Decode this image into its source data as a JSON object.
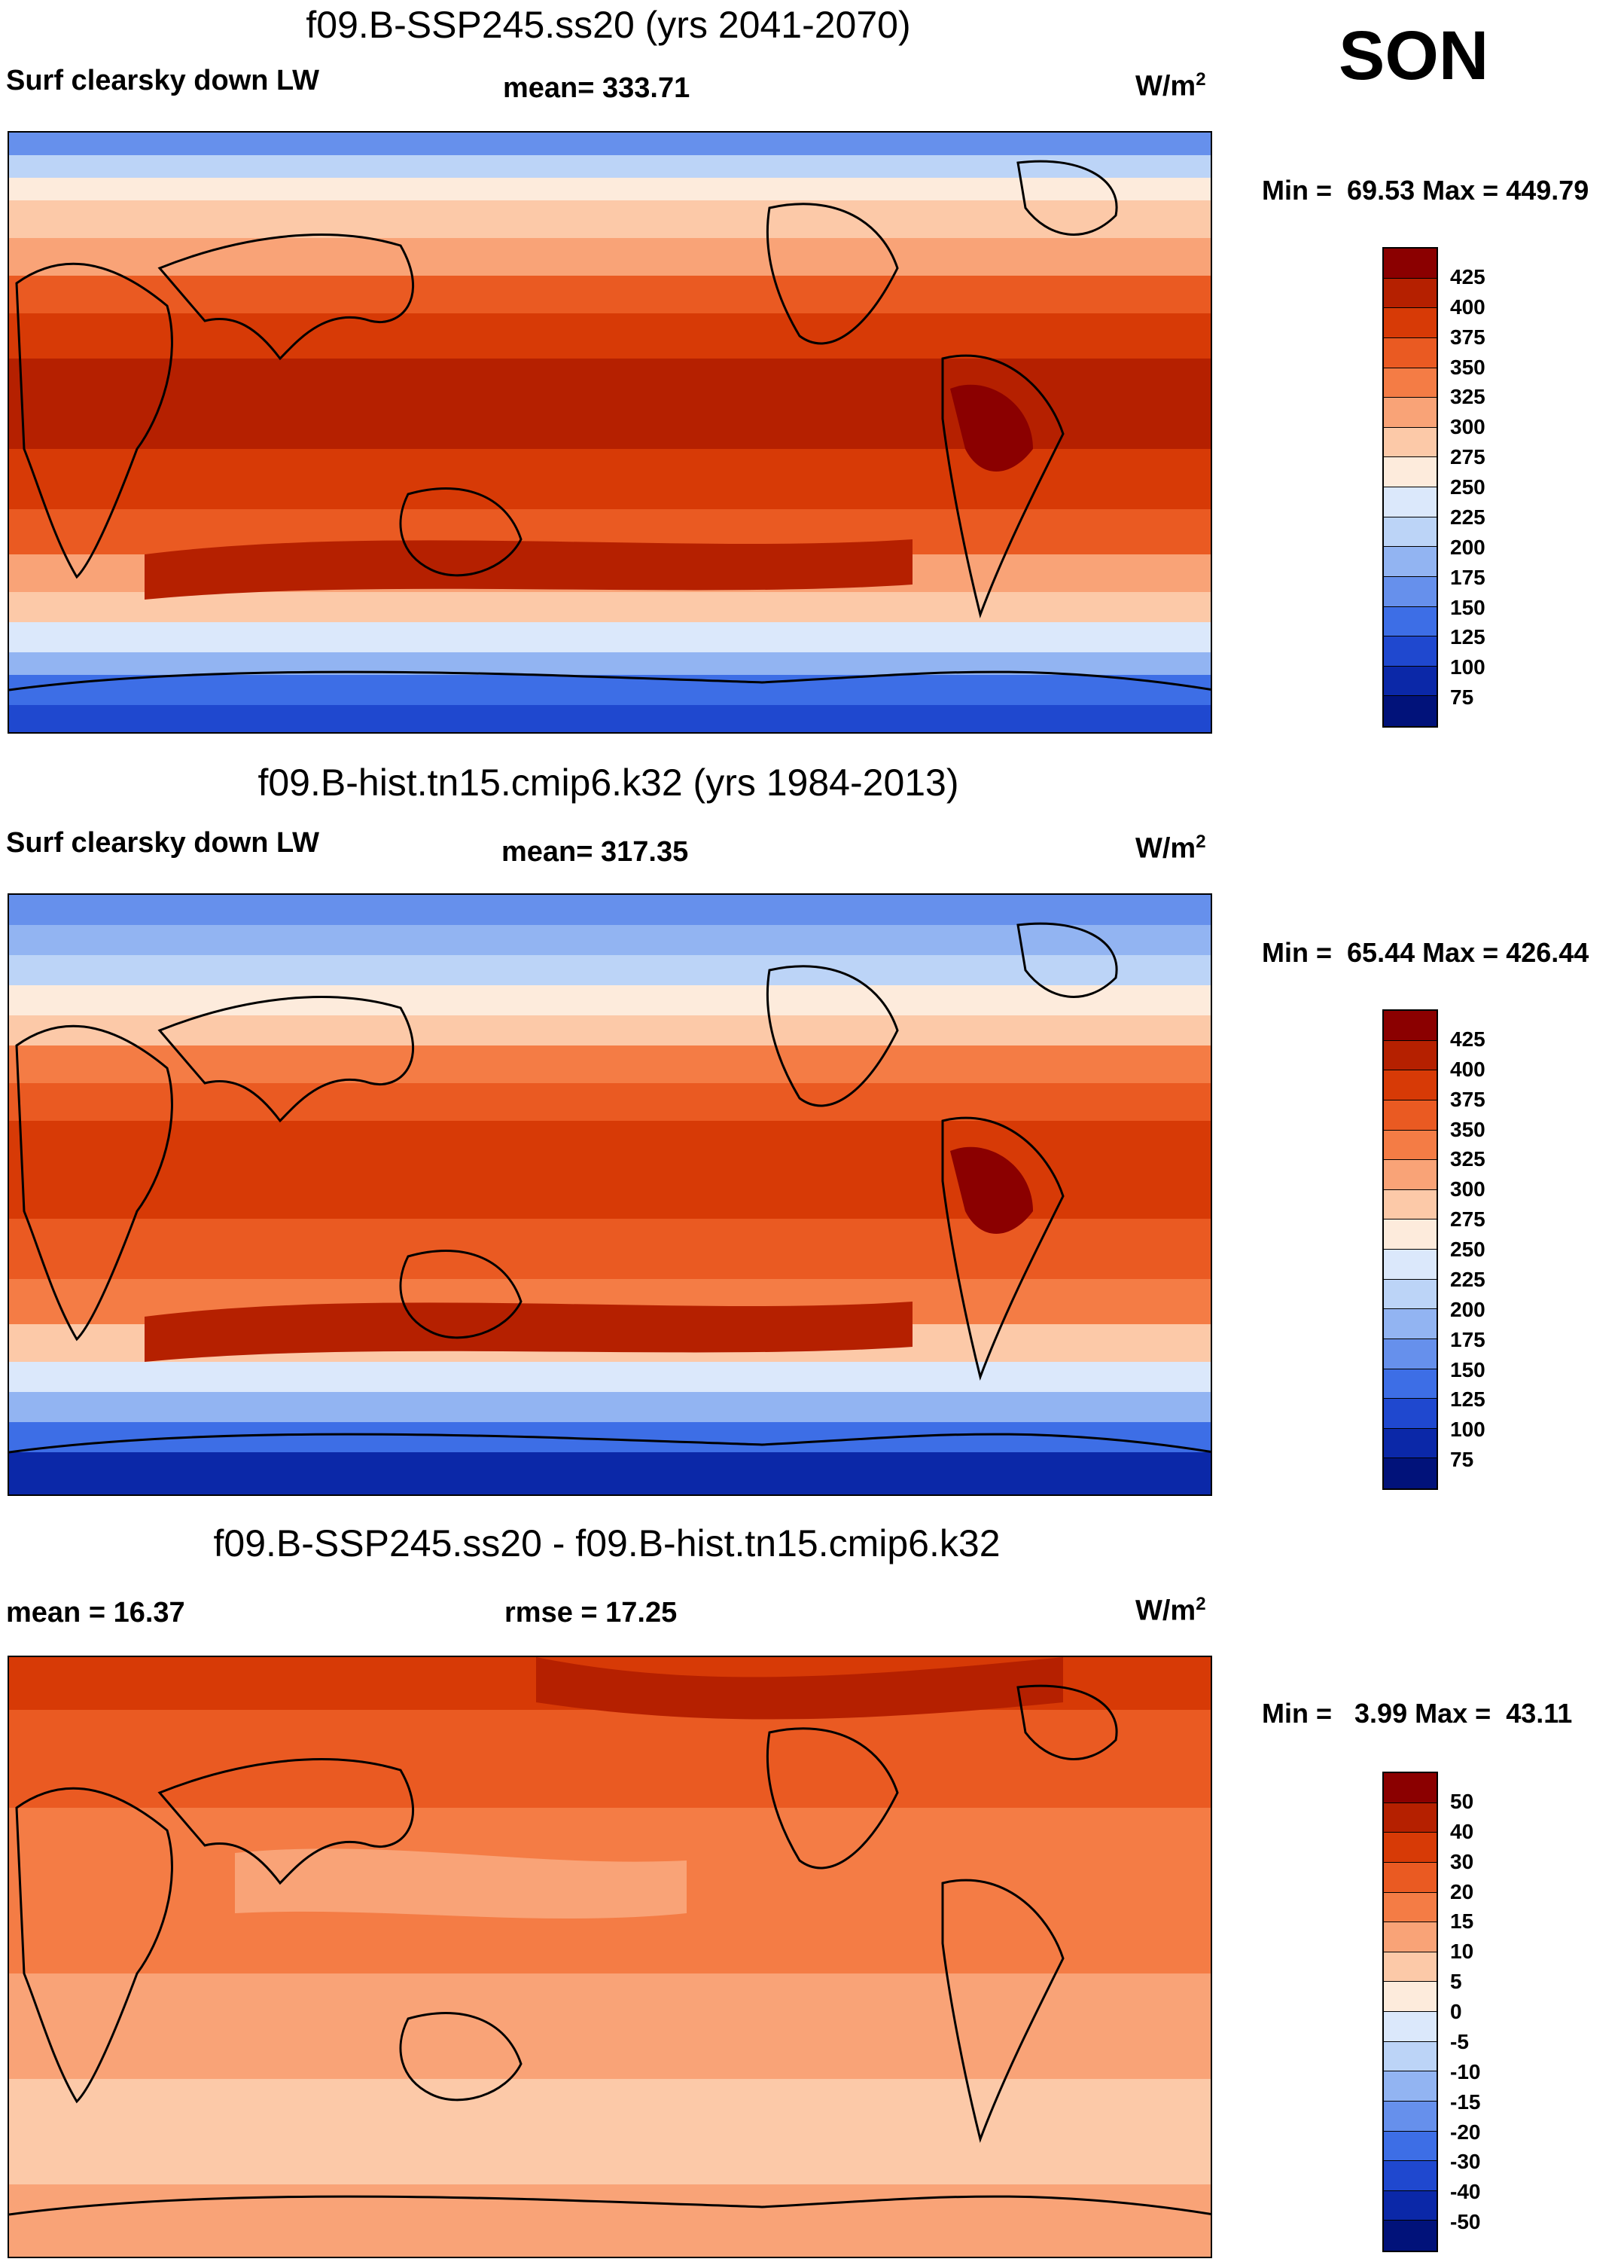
{
  "season": "SON",
  "panels": [
    {
      "title": "f09.B-SSP245.ss20 (yrs 2041-2070)",
      "left_label": "Surf clearsky down LW",
      "center_label": "mean= 333.71",
      "units": "W/m",
      "units_sup": "2",
      "min_label": "Min =",
      "min_value": "69.53",
      "max_label": "Max =",
      "max_value": "449.79",
      "colorbar": {
        "ticks": [
          "425",
          "400",
          "375",
          "350",
          "325",
          "300",
          "275",
          "250",
          "225",
          "200",
          "175",
          "150",
          "125",
          "100",
          "75"
        ],
        "colors": [
          "#8b0000",
          "#b52000",
          "#d73a06",
          "#ea5a22",
          "#f47c45",
          "#f9a377",
          "#fcc9a8",
          "#fdebdc",
          "#dbe8fb",
          "#bcd4f7",
          "#92b4f2",
          "#6690ec",
          "#3d6ee6",
          "#1f48cf",
          "#0b28a8",
          "#01127a"
        ]
      },
      "map_palette": "abs"
    },
    {
      "title": "f09.B-hist.tn15.cmip6.k32 (yrs 1984-2013)",
      "left_label": "Surf clearsky down LW",
      "center_label": "mean= 317.35",
      "units": "W/m",
      "units_sup": "2",
      "min_label": "Min =",
      "min_value": "65.44",
      "max_label": "Max =",
      "max_value": "426.44",
      "colorbar": {
        "ticks": [
          "425",
          "400",
          "375",
          "350",
          "325",
          "300",
          "275",
          "250",
          "225",
          "200",
          "175",
          "150",
          "125",
          "100",
          "75"
        ],
        "colors": [
          "#8b0000",
          "#b52000",
          "#d73a06",
          "#ea5a22",
          "#f47c45",
          "#f9a377",
          "#fcc9a8",
          "#fdebdc",
          "#dbe8fb",
          "#bcd4f7",
          "#92b4f2",
          "#6690ec",
          "#3d6ee6",
          "#1f48cf",
          "#0b28a8",
          "#01127a"
        ]
      },
      "map_palette": "abs_hist"
    },
    {
      "title": "f09.B-SSP245.ss20 - f09.B-hist.tn15.cmip6.k32",
      "left_label": "mean =  16.37",
      "center_label": "rmse =  17.25",
      "units": "W/m",
      "units_sup": "2",
      "min_label": "Min =",
      "min_value": "3.99",
      "max_label": "Max =",
      "max_value": "43.11",
      "colorbar": {
        "ticks": [
          "50",
          "40",
          "30",
          "20",
          "15",
          "10",
          "5",
          "0",
          "-5",
          "-10",
          "-15",
          "-20",
          "-30",
          "-40",
          "-50"
        ],
        "colors": [
          "#8b0000",
          "#b52000",
          "#d73a06",
          "#ea5a22",
          "#f47c45",
          "#f9a377",
          "#fcc9a8",
          "#fdebdc",
          "#dbe8fb",
          "#bcd4f7",
          "#92b4f2",
          "#6690ec",
          "#3d6ee6",
          "#1f48cf",
          "#0b28a8",
          "#01127a"
        ]
      },
      "map_palette": "diff"
    }
  ]
}
